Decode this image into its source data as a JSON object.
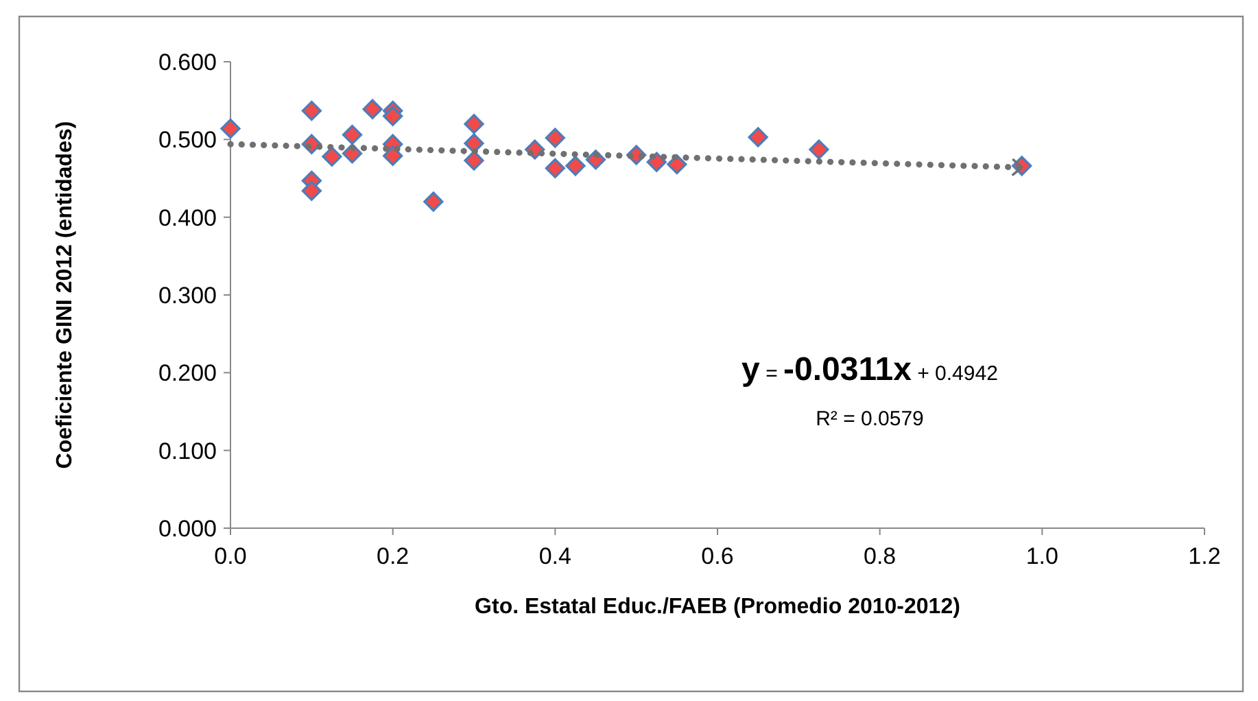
{
  "chart_data": {
    "type": "scatter",
    "xlabel": "Gto. Estatal Educ./FAEB (Promedio 2010-2012)",
    "ylabel": "Coeficiente GINI 2012 (entidades)",
    "xlim": [
      0,
      1.2
    ],
    "xticks": [
      {
        "value": 0,
        "label": "0.0"
      },
      {
        "value": 0.2,
        "label": "0.2"
      },
      {
        "value": 0.4,
        "label": "0.4"
      },
      {
        "value": 0.6,
        "label": "0.6"
      },
      {
        "value": 0.8,
        "label": "0.8"
      },
      {
        "value": 1,
        "label": "1.0"
      },
      {
        "value": 1.2,
        "label": "1.2"
      }
    ],
    "ylim": [
      0,
      0.6
    ],
    "yticks": [
      {
        "value": 0,
        "label": "0.000"
      },
      {
        "value": 0.1,
        "label": "0.100"
      },
      {
        "value": 0.2,
        "label": "0.200"
      },
      {
        "value": 0.3,
        "label": "0.300"
      },
      {
        "value": 0.4,
        "label": "0.400"
      },
      {
        "value": 0.5,
        "label": "0.500"
      },
      {
        "value": 0.6,
        "label": "0.600"
      }
    ],
    "grid": false,
    "marker": "diamond",
    "series": [
      {
        "color": "#f04a4a",
        "x": [
          0,
          0.1,
          0.1,
          0.1,
          0.1,
          0.125,
          0.15,
          0.15,
          0.175,
          0.2,
          0.2,
          0.2,
          0.2,
          0.25,
          0.3,
          0.3,
          0.3,
          0.375,
          0.4,
          0.4,
          0.425,
          0.45,
          0.5,
          0.525,
          0.55,
          0.65,
          0.725,
          0.975
        ],
        "values": [
          0.514,
          0.537,
          0.494,
          0.447,
          0.434,
          0.478,
          0.506,
          0.482,
          0.539,
          0.537,
          0.53,
          0.494,
          0.479,
          0.42,
          0.52,
          0.495,
          0.473,
          0.487,
          0.502,
          0.463,
          0.466,
          0.474,
          0.48,
          0.471,
          0.468,
          0.503,
          0.487,
          0.466
        ]
      },
      {
        "type": "line",
        "color": "#707070",
        "line_style": "dotted",
        "marker": "none",
        "x": [
          0,
          0.975
        ],
        "values": [
          0.494,
          0.464
        ]
      }
    ],
    "annotations": [
      "y = -0.0311x + 0.4942",
      "R² = 0.0579"
    ]
  }
}
